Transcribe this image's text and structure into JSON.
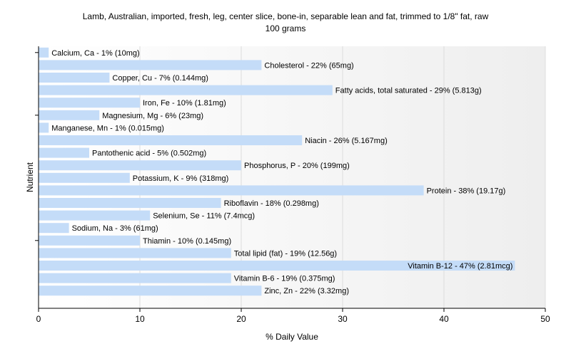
{
  "chart_data": {
    "type": "bar",
    "orientation": "horizontal",
    "title_lines": [
      "Lamb, Australian, imported, fresh, leg, center slice, bone-in, separable lean and fat, trimmed to 1/8\" fat, raw",
      "100 grams"
    ],
    "xlabel": "% Daily Value",
    "ylabel": "Nutrient",
    "xlim": [
      0,
      50
    ],
    "xticks": [
      0,
      10,
      20,
      30,
      40,
      50
    ],
    "grid": "vertical",
    "bar_color": "#c4dcf8",
    "categories": [
      "Calcium, Ca",
      "Cholesterol",
      "Copper, Cu",
      "Fatty acids, total saturated",
      "Iron, Fe",
      "Magnesium, Mg",
      "Manganese, Mn",
      "Niacin",
      "Pantothenic acid",
      "Phosphorus, P",
      "Potassium, K",
      "Protein",
      "Riboflavin",
      "Selenium, Se",
      "Sodium, Na",
      "Thiamin",
      "Total lipid (fat)",
      "Vitamin B-12",
      "Vitamin B-6",
      "Zinc, Zn"
    ],
    "values": [
      1,
      22,
      7,
      29,
      10,
      6,
      1,
      26,
      5,
      20,
      9,
      38,
      18,
      11,
      3,
      10,
      19,
      47,
      19,
      22
    ],
    "labels": [
      "Calcium, Ca - 1% (10mg)",
      "Cholesterol - 22% (65mg)",
      "Copper, Cu - 7% (0.144mg)",
      "Fatty acids, total saturated - 29% (5.813g)",
      "Iron, Fe - 10% (1.81mg)",
      "Magnesium, Mg - 6% (23mg)",
      "Manganese, Mn - 1% (0.015mg)",
      "Niacin - 26% (5.167mg)",
      "Pantothenic acid - 5% (0.502mg)",
      "Phosphorus, P - 20% (199mg)",
      "Potassium, K - 9% (318mg)",
      "Protein - 38% (19.17g)",
      "Riboflavin - 18% (0.298mg)",
      "Selenium, Se - 11% (7.4mcg)",
      "Sodium, Na - 3% (61mg)",
      "Thiamin - 10% (0.145mg)",
      "Total lipid (fat) - 19% (12.56g)",
      "Vitamin B-12 - 47% (2.81mcg)",
      "Vitamin B-6 - 19% (0.375mg)",
      "Zinc, Zn - 22% (3.32mg)"
    ]
  }
}
